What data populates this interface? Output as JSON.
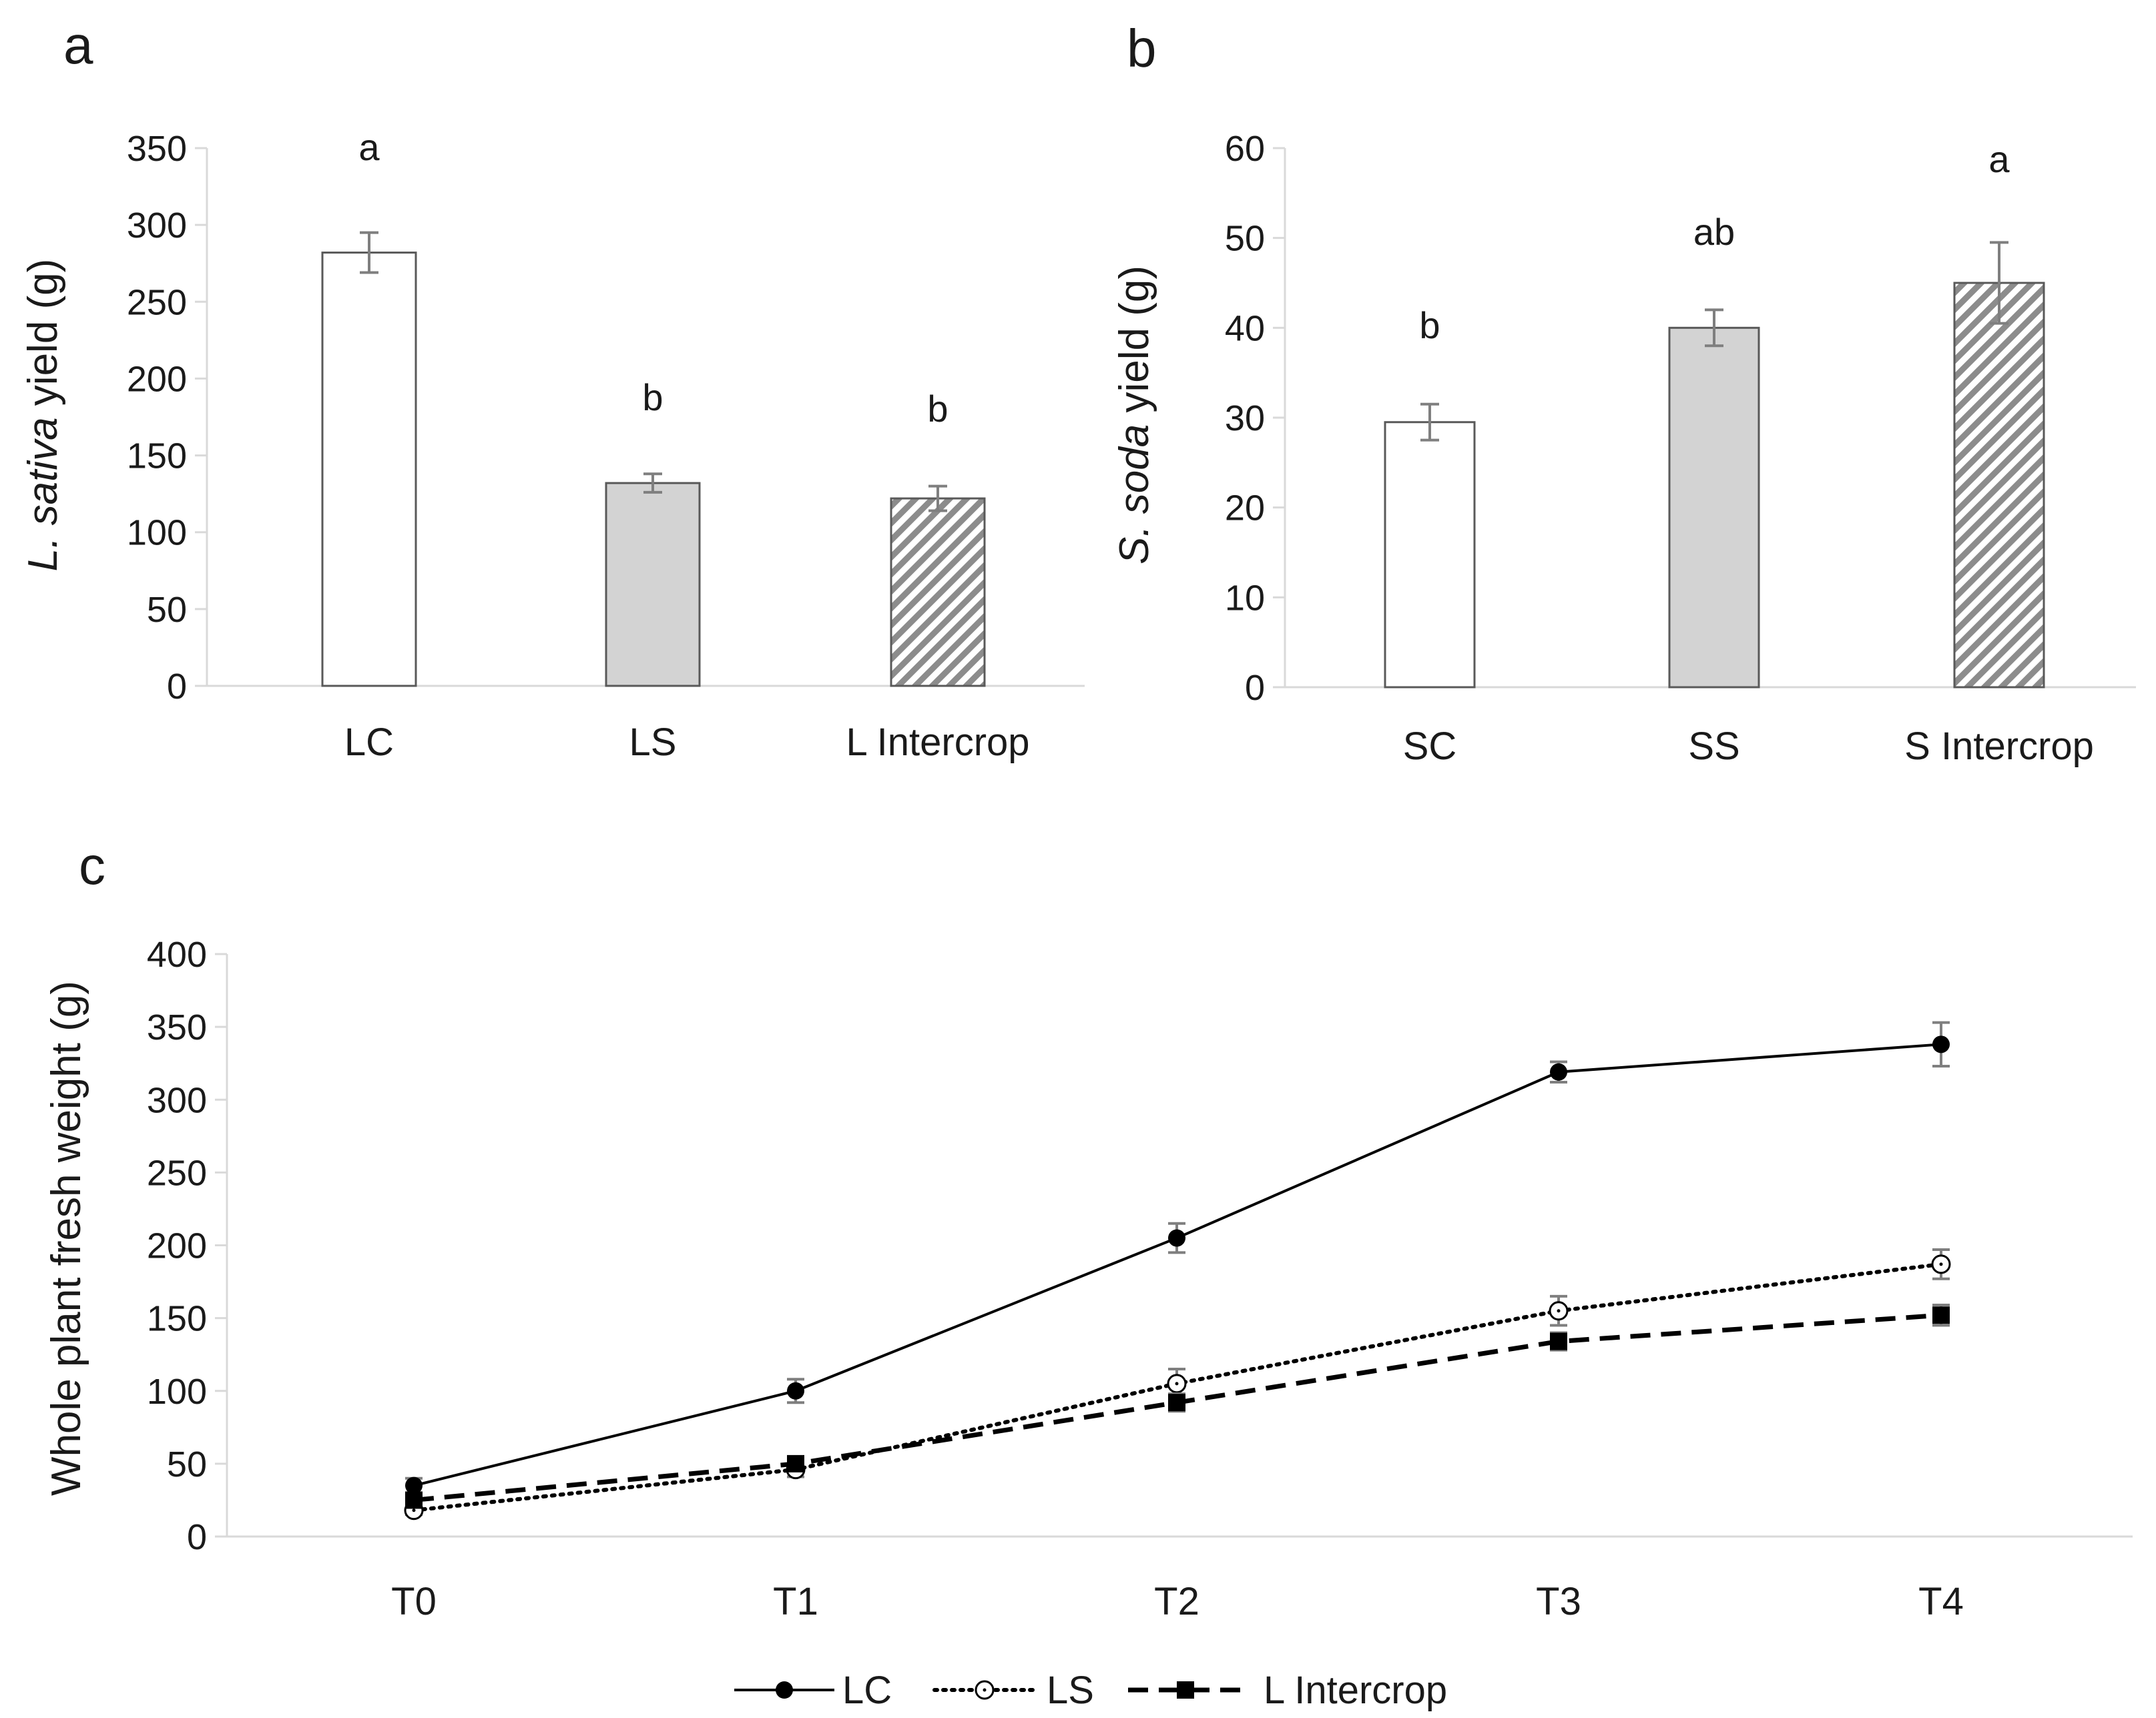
{
  "chart_data": [
    {
      "panel_label": "a",
      "type": "bar",
      "ylabel_italic": "L. sativa",
      "ylabel_rest": " yield (g)",
      "categories": [
        "LC",
        "LS",
        "L Intercrop"
      ],
      "values": [
        282,
        132,
        122
      ],
      "errors": [
        13,
        6,
        8
      ],
      "significance": [
        "a",
        "b",
        "b"
      ],
      "fills": [
        "white",
        "grey",
        "hatched"
      ],
      "ylim": [
        0,
        350
      ],
      "yticks": [
        "0",
        "50",
        "100",
        "150",
        "200",
        "250",
        "300",
        "350"
      ]
    },
    {
      "panel_label": "b",
      "type": "bar",
      "ylabel_italic": "S. soda",
      "ylabel_rest": " yield (g)",
      "categories": [
        "SC",
        "SS",
        "S Intercrop"
      ],
      "values": [
        29.5,
        40,
        45
      ],
      "errors": [
        2,
        2,
        4.5
      ],
      "significance": [
        "b",
        "ab",
        "a"
      ],
      "fills": [
        "white",
        "grey",
        "hatched"
      ],
      "ylim": [
        0,
        60
      ],
      "yticks": [
        "0",
        "10",
        "20",
        "30",
        "40",
        "50",
        "60"
      ]
    },
    {
      "panel_label": "c",
      "type": "line",
      "ylabel": "Whole plant fresh weight (g)",
      "categories": [
        "T0",
        "T1",
        "T2",
        "T3",
        "T4"
      ],
      "ylim": [
        0,
        400
      ],
      "yticks": [
        "0",
        "50",
        "100",
        "150",
        "200",
        "250",
        "300",
        "350",
        "400"
      ],
      "series": [
        {
          "name": "LC",
          "values": [
            35,
            100,
            205,
            319,
            338
          ],
          "errors": [
            5,
            8,
            10,
            7,
            15
          ],
          "marker": "filled-circle",
          "dash": "solid"
        },
        {
          "name": "LS",
          "values": [
            18,
            46,
            105,
            155,
            187
          ],
          "errors": [
            3,
            5,
            10,
            10,
            10
          ],
          "marker": "open-circle",
          "dash": "dotted"
        },
        {
          "name": "L Intercrop",
          "values": [
            25,
            50,
            92,
            134,
            152
          ],
          "errors": [
            3,
            4,
            6,
            6,
            7
          ],
          "marker": "filled-square",
          "dash": "dashed"
        }
      ],
      "legend_position": "bottom"
    }
  ],
  "colors": {
    "axis": "#d9d9d9",
    "ink": "#000000",
    "grey_bar": "#d3d3d3",
    "error_bar": "#7f7f7f"
  }
}
